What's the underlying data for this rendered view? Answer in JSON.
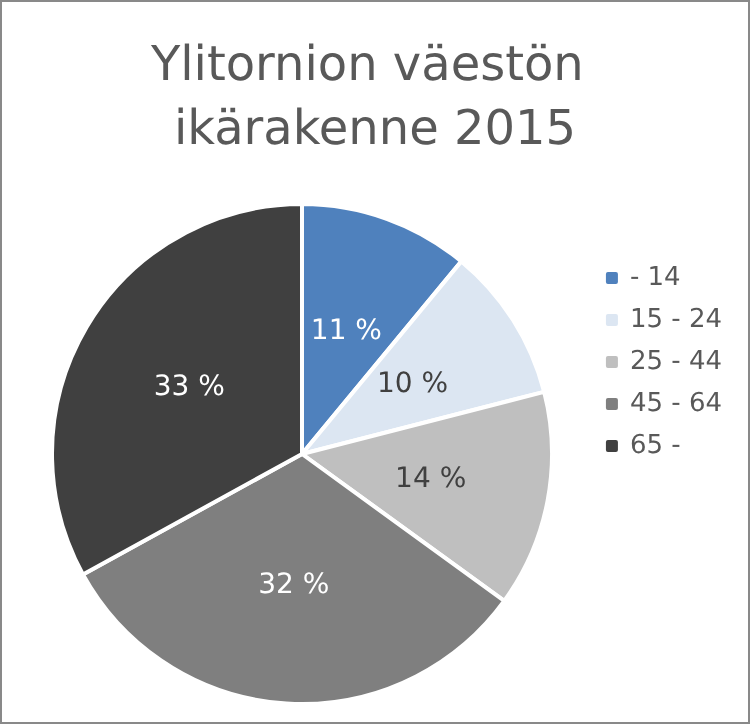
{
  "chart_data": {
    "type": "pie",
    "title": "Ylitornion väestön ikärakenne 2015",
    "categories": [
      "- 14",
      "15 - 24",
      "25 - 44",
      "45 - 64",
      "65 -"
    ],
    "values": [
      11,
      10,
      14,
      32,
      33
    ],
    "value_labels": [
      "11 %",
      "10 %",
      "14 %",
      "32 %",
      "33 %"
    ],
    "colors": [
      "#4f81bd",
      "#dce6f2",
      "#bfbfbf",
      "#7f7f7f",
      "#404040"
    ],
    "legend": "right"
  }
}
